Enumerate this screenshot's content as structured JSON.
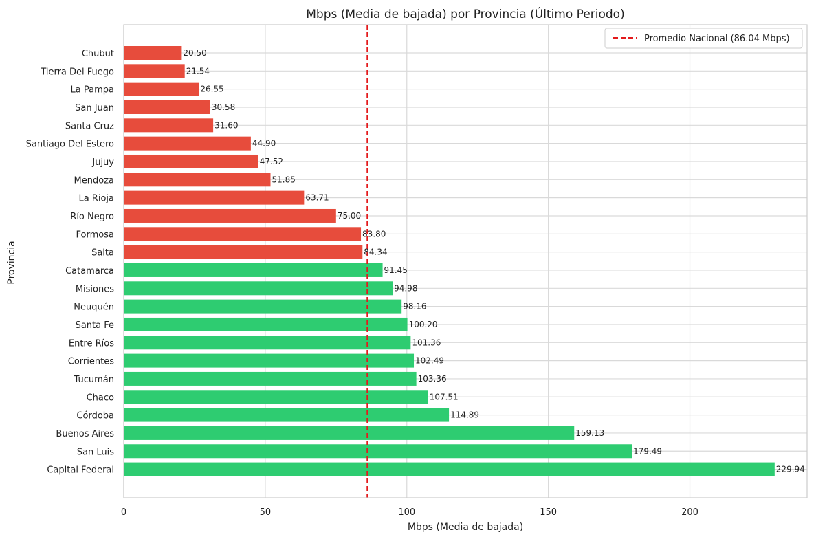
{
  "chart_data": {
    "type": "bar",
    "orientation": "horizontal",
    "title": "Mbps (Media de bajada) por Provincia (Último Periodo)",
    "xlabel": "Mbps (Media de bajada)",
    "ylabel": "Provincia",
    "xlim": [
      0,
      241.4
    ],
    "xticks": [
      0,
      50,
      100,
      150,
      200
    ],
    "grid": true,
    "categories": [
      "Chubut",
      "Tierra Del Fuego",
      "La Pampa",
      "San Juan",
      "Santa Cruz",
      "Santiago Del Estero",
      "Jujuy",
      "Mendoza",
      "La Rioja",
      "Río Negro",
      "Formosa",
      "Salta",
      "Catamarca",
      "Misiones",
      "Neuquén",
      "Santa Fe",
      "Entre Ríos",
      "Corrientes",
      "Tucumán",
      "Chaco",
      "Córdoba",
      "Buenos Aires",
      "San Luis",
      "Capital Federal"
    ],
    "values": [
      20.5,
      21.54,
      26.55,
      30.58,
      31.6,
      44.9,
      47.52,
      51.85,
      63.71,
      75.0,
      83.8,
      84.34,
      91.45,
      94.98,
      98.16,
      100.2,
      101.36,
      102.49,
      103.36,
      107.51,
      114.89,
      159.13,
      179.49,
      229.94
    ],
    "value_labels": [
      "20.50",
      "21.54",
      "26.55",
      "30.58",
      "31.60",
      "44.90",
      "47.52",
      "51.85",
      "63.71",
      "75.00",
      "83.80",
      "84.34",
      "91.45",
      "94.98",
      "98.16",
      "100.20",
      "101.36",
      "102.49",
      "103.36",
      "107.51",
      "114.89",
      "159.13",
      "179.49",
      "229.94"
    ],
    "reference_line": {
      "value": 86.04,
      "label": "Promedio Nacional (86.04 Mbps)",
      "color": "#e31a1c",
      "style": "dashed"
    },
    "colors": {
      "below_average": "#e74c3c",
      "above_average": "#2ecc71",
      "grid": "#d9d9d9",
      "axes": "#cccccc"
    },
    "legend": {
      "position": "top-right"
    }
  }
}
